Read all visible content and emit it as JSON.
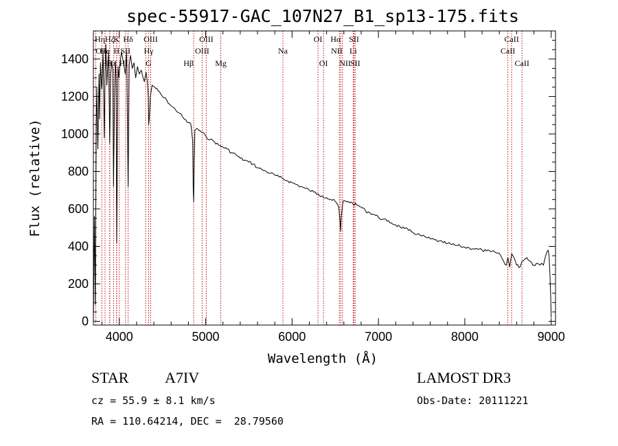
{
  "chart_data": {
    "type": "line",
    "title": "spec-55917-GAC_107N27_B1_sp13-175.fits",
    "xlabel": "Wavelength (Å)",
    "ylabel": "Flux (relative)",
    "xlim": [
      3700,
      9050
    ],
    "ylim": [
      -20,
      1550
    ],
    "x_ticks": [
      4000,
      5000,
      6000,
      7000,
      8000,
      9000
    ],
    "x_tick_labels": [
      "4000",
      "5000",
      "6000",
      "7000",
      "8000",
      "9000"
    ],
    "y_ticks": [
      0,
      200,
      400,
      600,
      800,
      1000,
      1200,
      1400
    ],
    "y_tick_labels": [
      "0",
      "200",
      "400",
      "600",
      "800",
      "1000",
      "1200",
      "1400"
    ],
    "line_color": "#000000",
    "marker_color": "#c00000",
    "series": [
      {
        "name": "spectrum",
        "x": [
          3700,
          3712,
          3722,
          3733,
          3740,
          3752,
          3765,
          3772,
          3782,
          3795,
          3800,
          3812,
          3826,
          3835,
          3845,
          3856,
          3870,
          3876,
          3889,
          3900,
          3912,
          3925,
          3933,
          3945,
          3955,
          3963,
          3970,
          3985,
          3995,
          4010,
          4025,
          4040,
          4055,
          4070,
          4085,
          4102,
          4115,
          4130,
          4150,
          4170,
          4190,
          4210,
          4230,
          4255,
          4275,
          4290,
          4310,
          4325,
          4335,
          4340,
          4346,
          4360,
          4380,
          4410,
          4450,
          4500,
          4550,
          4600,
          4650,
          4700,
          4750,
          4800,
          4830,
          4850,
          4856,
          4861,
          4866,
          4875,
          4900,
          4950,
          5000,
          5050,
          5100,
          5150,
          5200,
          5250,
          5300,
          5350,
          5400,
          5450,
          5500,
          5550,
          5600,
          5650,
          5700,
          5750,
          5800,
          5850,
          5900,
          5950,
          6000,
          6050,
          6100,
          6150,
          6200,
          6250,
          6300,
          6350,
          6400,
          6450,
          6500,
          6540,
          6555,
          6563,
          6570,
          6590,
          6650,
          6700,
          6750,
          6800,
          6850,
          6900,
          6950,
          7000,
          7050,
          7100,
          7150,
          7200,
          7250,
          7300,
          7350,
          7400,
          7450,
          7500,
          7550,
          7600,
          7650,
          7700,
          7750,
          7800,
          7850,
          7900,
          7950,
          8000,
          8050,
          8100,
          8150,
          8200,
          8250,
          8300,
          8350,
          8400,
          8450,
          8480,
          8498,
          8520,
          8542,
          8570,
          8600,
          8640,
          8662,
          8690,
          8720,
          8760,
          8800,
          8840,
          8870,
          8890,
          8910,
          8930,
          8950,
          8965,
          8975,
          8985,
          8995,
          9000
        ],
        "values": [
          0,
          560,
          90,
          1050,
          1250,
          920,
          1320,
          1080,
          1380,
          1240,
          1260,
          1440,
          980,
          1320,
          1480,
          1260,
          1400,
          1440,
          950,
          1320,
          1380,
          1340,
          720,
          1200,
          1390,
          1300,
          420,
          1360,
          1300,
          1380,
          1440,
          1400,
          1360,
          1320,
          1440,
          720,
          1370,
          1420,
          1350,
          1380,
          1300,
          1360,
          1320,
          1340,
          1300,
          1280,
          1330,
          1280,
          1200,
          1050,
          1080,
          1200,
          1260,
          1250,
          1230,
          1200,
          1180,
          1150,
          1130,
          1110,
          1080,
          1060,
          1050,
          960,
          700,
          640,
          820,
          1020,
          1030,
          1010,
          990,
          970,
          960,
          940,
          930,
          920,
          900,
          890,
          870,
          860,
          850,
          840,
          820,
          810,
          800,
          790,
          780,
          770,
          760,
          750,
          740,
          730,
          720,
          710,
          700,
          690,
          680,
          670,
          660,
          650,
          640,
          610,
          540,
          480,
          560,
          640,
          640,
          630,
          620,
          610,
          590,
          580,
          570,
          555,
          545,
          535,
          525,
          515,
          505,
          495,
          485,
          475,
          465,
          455,
          448,
          440,
          435,
          428,
          420,
          415,
          410,
          405,
          400,
          395,
          392,
          388,
          385,
          380,
          375,
          372,
          368,
          362,
          320,
          300,
          340,
          290,
          360,
          340,
          300,
          290,
          320,
          330,
          340,
          320,
          300,
          310,
          300,
          310,
          300,
          340,
          370,
          380,
          350,
          260,
          120,
          20
        ]
      }
    ],
    "line_markers": [
      {
        "label": "Hη",
        "x": 3835,
        "row": 0,
        "ha": "end"
      },
      {
        "label": "OII",
        "x": 3727,
        "row": 1,
        "ha": "start"
      },
      {
        "label": "Hζ",
        "x": 3889,
        "row": 0,
        "ha": "middle"
      },
      {
        "label": "He",
        "x": 3889,
        "row": 1,
        "ha": "end"
      },
      {
        "label": "Hε",
        "x": 3970,
        "row": 2,
        "ha": "end"
      },
      {
        "label": "K",
        "x": 3934,
        "row": 0,
        "ha": "start"
      },
      {
        "label": "H",
        "x": 3968,
        "row": 1,
        "ha": "middle"
      },
      {
        "label": "SII",
        "x": 4072,
        "row": 1,
        "ha": "middle"
      },
      {
        "label": "Hδ",
        "x": 4102,
        "row": 0,
        "ha": "middle"
      },
      {
        "label": "Hθ",
        "x": 3798,
        "row": 2,
        "ha": "start"
      },
      {
        "label": "HI",
        "x": 4000,
        "row": 2,
        "ha": "start"
      },
      {
        "label": "G",
        "x": 4305,
        "row": 2,
        "ha": "start"
      },
      {
        "label": "OIII",
        "x": 4363,
        "row": 0,
        "ha": "middle"
      },
      {
        "label": "Hγ",
        "x": 4340,
        "row": 1,
        "ha": "middle"
      },
      {
        "label": "Hβ",
        "x": 4861,
        "row": 2,
        "ha": "end"
      },
      {
        "label": "OIII",
        "x": 4959,
        "row": 1,
        "ha": "middle"
      },
      {
        "label": "OIII",
        "x": 5007,
        "row": 0,
        "ha": "middle"
      },
      {
        "label": "Mg",
        "x": 5175,
        "row": 2,
        "ha": "middle"
      },
      {
        "label": "Na",
        "x": 5894,
        "row": 1,
        "ha": "middle"
      },
      {
        "label": "OI",
        "x": 6300,
        "row": 0,
        "ha": "middle"
      },
      {
        "label": "OI",
        "x": 6364,
        "row": 2,
        "ha": "middle"
      },
      {
        "label": "Hα",
        "x": 6563,
        "row": 0,
        "ha": "end"
      },
      {
        "label": "NII",
        "x": 6584,
        "row": 1,
        "ha": "end"
      },
      {
        "label": "NII",
        "x": 6548,
        "row": 2,
        "ha": "start"
      },
      {
        "label": "SII",
        "x": 6717,
        "row": 0,
        "ha": "middle"
      },
      {
        "label": "Li",
        "x": 6708,
        "row": 1,
        "ha": "middle"
      },
      {
        "label": "SII",
        "x": 6731,
        "row": 2,
        "ha": "middle"
      },
      {
        "label": "CaII",
        "x": 8542,
        "row": 0,
        "ha": "middle"
      },
      {
        "label": "CaII",
        "x": 8498,
        "row": 1,
        "ha": "middle"
      },
      {
        "label": "CaII",
        "x": 8662,
        "row": 2,
        "ha": "middle"
      }
    ]
  },
  "info": {
    "object_class": "STAR",
    "subclass": "A7IV",
    "survey": "LAMOST DR3",
    "cz": "cz = 55.9 ± 8.1 km/s",
    "obs_date": "Obs-Date: 20111221",
    "coords": "RA = 110.64214, DEC =  28.79560"
  }
}
